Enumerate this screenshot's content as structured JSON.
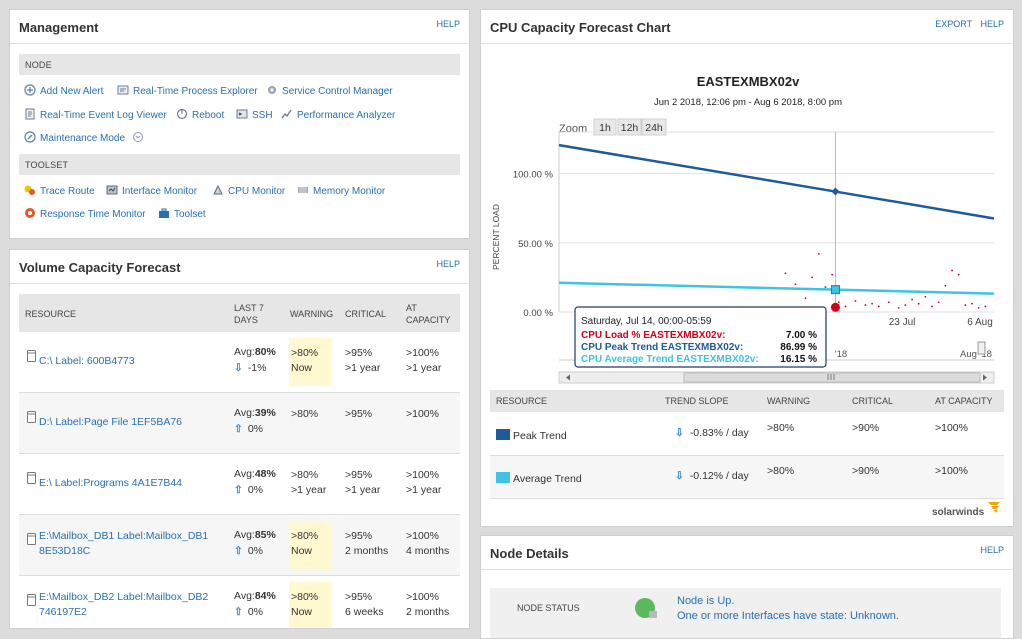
{
  "management": {
    "title": "Management",
    "help": "HELP",
    "node_section": "NODE",
    "node_actions": [
      "Add New Alert",
      "Real-Time Process Explorer",
      "Service Control Manager",
      "Real-Time Event Log Viewer",
      "Reboot",
      "SSH",
      "Performance Analyzer",
      "Maintenance Mode"
    ],
    "toolset_section": "TOOLSET",
    "toolset_actions": [
      "Trace Route",
      "Interface Monitor",
      "CPU Monitor",
      "Memory Monitor",
      "Response Time Monitor",
      "Toolset"
    ]
  },
  "volume": {
    "title": "Volume Capacity Forecast",
    "help": "HELP",
    "headers": {
      "resource": "RESOURCE",
      "last7_a": "LAST 7",
      "last7_b": "DAYS",
      "warning": "WARNING",
      "critical": "CRITICAL",
      "atcap_a": "AT",
      "atcap_b": "CAPACITY"
    },
    "rows": [
      {
        "name_a": "C:\\ Label: 600B4773",
        "name_b": "",
        "avg": "Avg:",
        "avg_val": "80%",
        "trend": "-1%",
        "trend_dir": "down",
        "warn_a": ">80%",
        "warn_b": "Now",
        "crit_a": ">95%",
        "crit_b": ">1 year",
        "cap_a": ">100%",
        "cap_b": ">1 year",
        "highlight": true
      },
      {
        "name_a": "D:\\ Label:Page File 1EF5BA76",
        "name_b": "",
        "avg": "Avg:",
        "avg_val": "39%",
        "trend": "0%",
        "trend_dir": "up",
        "warn_a": ">80%",
        "warn_b": "",
        "crit_a": ">95%",
        "crit_b": "",
        "cap_a": ">100%",
        "cap_b": "",
        "highlight": false
      },
      {
        "name_a": "E:\\ Label:Programs 4A1E7B44",
        "name_b": "",
        "avg": "Avg:",
        "avg_val": "48%",
        "trend": "0%",
        "trend_dir": "up",
        "warn_a": ">80%",
        "warn_b": ">1 year",
        "crit_a": ">95%",
        "crit_b": ">1 year",
        "cap_a": ">100%",
        "cap_b": ">1 year",
        "highlight": false
      },
      {
        "name_a": "E:\\Mailbox_DB1 Label:Mailbox_DB1",
        "name_b": "8E53D18C",
        "avg": "Avg:",
        "avg_val": "85%",
        "trend": "0%",
        "trend_dir": "up",
        "warn_a": ">80%",
        "warn_b": "Now",
        "crit_a": ">95%",
        "crit_b": "2 months",
        "cap_a": ">100%",
        "cap_b": "4 months",
        "highlight": true
      },
      {
        "name_a": "E:\\Mailbox_DB2 Label:Mailbox_DB2",
        "name_b": "746197E2",
        "avg": "Avg:",
        "avg_val": "84%",
        "trend": "0%",
        "trend_dir": "up",
        "warn_a": ">80%",
        "warn_b": "Now",
        "crit_a": ">95%",
        "crit_b": "6 weeks",
        "cap_a": ">100%",
        "cap_b": "2 months",
        "highlight": true
      }
    ]
  },
  "cpu": {
    "title": "CPU Capacity Forecast Chart",
    "export": "EXPORT",
    "help": "HELP",
    "zoom_label": "Zoom",
    "zoom_buttons": [
      "1h",
      "12h",
      "24h"
    ],
    "tooltip": {
      "title": "Saturday, Jul 14, 00:00-05:59",
      "rows": [
        {
          "label": "CPU Load % EASTEXMBX02v:",
          "value": "7.00 %",
          "color": "#d0021b"
        },
        {
          "label": "CPU Peak Trend EASTEXMBX02v:",
          "value": "86.99 %",
          "color": "#1f5a9a"
        },
        {
          "label": "CPU Average Trend EASTEXMBX02v:",
          "value": "16.15 %",
          "color": "#3ec3e6"
        }
      ]
    },
    "navigator_labels": [
      "'18",
      "Aug '18"
    ],
    "table_headers": {
      "resource": "RESOURCE",
      "slope": "TREND SLOPE",
      "warning": "WARNING",
      "critical": "CRITICAL",
      "atcap": "AT CAPACITY"
    },
    "table_rows": [
      {
        "name": "Peak Trend",
        "color": "#1f5a9a",
        "slope": "-0.83% / day",
        "warning": ">80%",
        "critical": ">90%",
        "atcap": ">100%"
      },
      {
        "name": "Average Trend",
        "color": "#3ec3e6",
        "slope": "-0.12% / day",
        "warning": ">80%",
        "critical": ">90%",
        "atcap": ">100%"
      }
    ],
    "brand": "solarwinds"
  },
  "chart_data": {
    "type": "line",
    "title": "EASTEXMBX02v",
    "subtitle": "Jun 2 2018, 12:06 pm - Aug 6 2018, 8:00 pm",
    "ylabel": "PERCENT LOAD",
    "xlabel": "",
    "y_ticks": [
      "100.00 %",
      "50.00 %",
      "0.00 %"
    ],
    "x_ticks": [
      "23 Jul",
      "6 Aug"
    ],
    "ylim": [
      0,
      130
    ],
    "x_range_days": [
      0,
      65.3
    ],
    "series": [
      {
        "name": "CPU Peak Trend EASTEXMBX02v",
        "color": "#1f5a9a",
        "x": [
          0,
          41.5,
          65.3
        ],
        "y": [
          120.5,
          86.99,
          67.5
        ]
      },
      {
        "name": "CPU Average Trend EASTEXMBX02v",
        "color": "#3ec3e6",
        "x": [
          0,
          41.5,
          65.3
        ],
        "y": [
          21.1,
          16.15,
          13.3
        ]
      },
      {
        "name": "CPU Load % EASTEXMBX02v",
        "color": "#d0021b",
        "type": "scatter",
        "x": [
          34,
          35.5,
          37,
          38,
          39,
          40,
          41,
          42,
          43,
          44.5,
          46,
          47,
          48,
          49.5,
          51,
          52,
          53,
          54,
          55,
          56,
          57,
          58,
          59,
          60,
          61,
          62,
          63,
          64
        ],
        "y": [
          28,
          20,
          10,
          25,
          42,
          18,
          27,
          7,
          4,
          8,
          5,
          6,
          4,
          7,
          3,
          5,
          9,
          6,
          11,
          4,
          7,
          19,
          30,
          27,
          5,
          6,
          3,
          4
        ]
      }
    ],
    "hover_x": 41.5
  },
  "node_details": {
    "title": "Node Details",
    "help": "HELP",
    "status_label": "NODE STATUS",
    "status_line1": "Node is Up.",
    "status_line2": "One or more Interfaces have state: Unknown."
  }
}
